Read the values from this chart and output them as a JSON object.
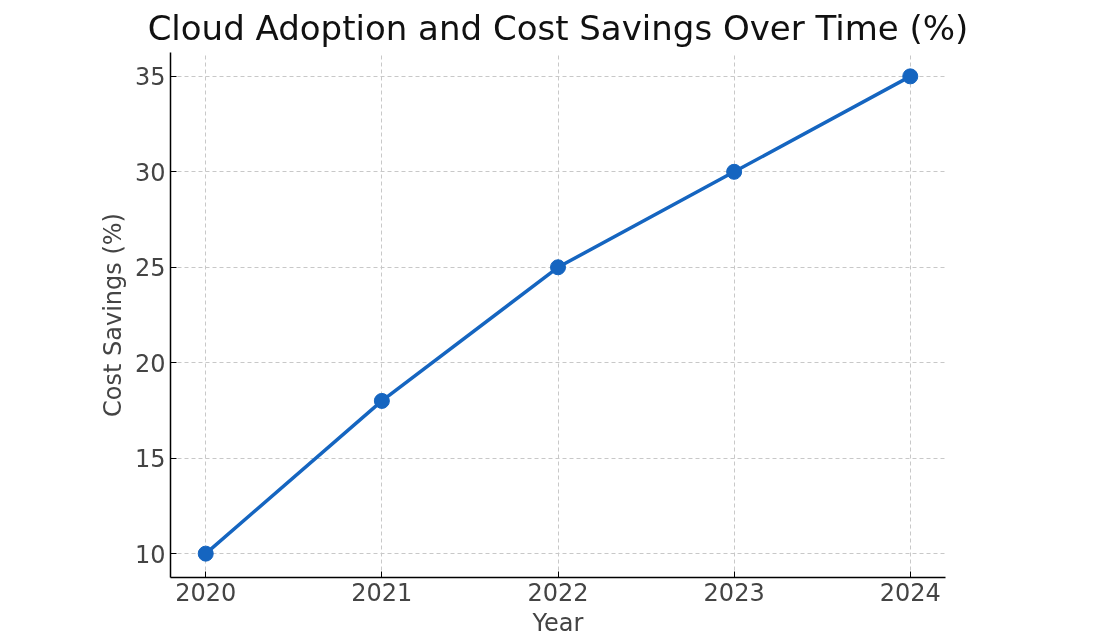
{
  "chart_data": {
    "type": "line",
    "title": "Cloud Adoption and Cost Savings Over Time (%)",
    "xlabel": "Year",
    "ylabel": "Cost Savings (%)",
    "x": [
      2020,
      2021,
      2022,
      2023,
      2024
    ],
    "series": [
      {
        "color": "#1565c0",
        "values": [
          10,
          18,
          25,
          30,
          35
        ]
      }
    ],
    "xlim": [
      2019.8,
      2024.2
    ],
    "xticks": [
      2020,
      2021,
      2022,
      2023,
      2024
    ],
    "ylim": [
      8.75,
      36.25
    ],
    "yticks": [
      10,
      15,
      20,
      25,
      30,
      35
    ],
    "grid": true,
    "marker": "circle",
    "line_style": "solid"
  }
}
